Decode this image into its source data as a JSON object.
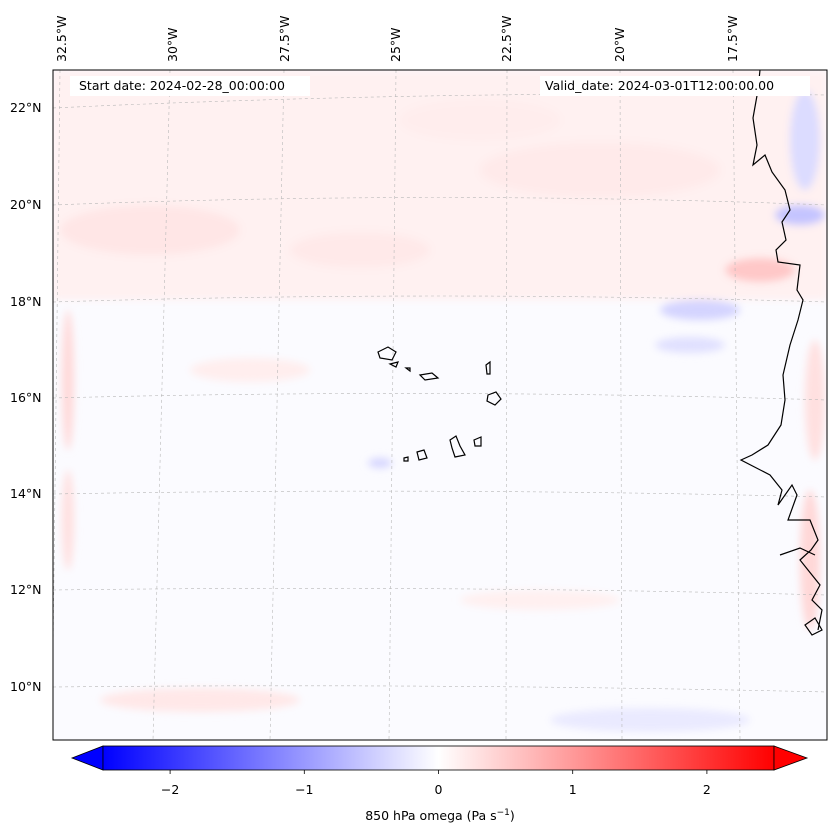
{
  "map": {
    "start_date": "Start date: 2024-02-28_00:00:00",
    "valid_date": "Valid_date: 2024-03-01T12:00:00.00",
    "lon_labels": [
      "32.5°W",
      "30°W",
      "27.5°W",
      "25°W",
      "22.5°W",
      "20°W",
      "17.5°W"
    ],
    "lat_labels": [
      "22°N",
      "20°N",
      "18°N",
      "16°N",
      "14°N",
      "12°N",
      "10°N"
    ],
    "field": "850 hPa omega",
    "colormap": "bwr",
    "colors": {
      "negative": "#0000ff",
      "zero": "#ffffff",
      "positive": "#ff0000",
      "coastline": "#000000",
      "grid": "#b0b0b0"
    }
  },
  "colorbar": {
    "ticks": [
      "−2",
      "−1",
      "0",
      "1",
      "2"
    ],
    "tick_values": [
      -2,
      -1,
      0,
      1,
      2
    ],
    "range": [
      -2.5,
      2.5
    ],
    "label_prefix": "850 hPa omega (Pa s",
    "label_exp": "−1",
    "label_suffix": ")"
  }
}
